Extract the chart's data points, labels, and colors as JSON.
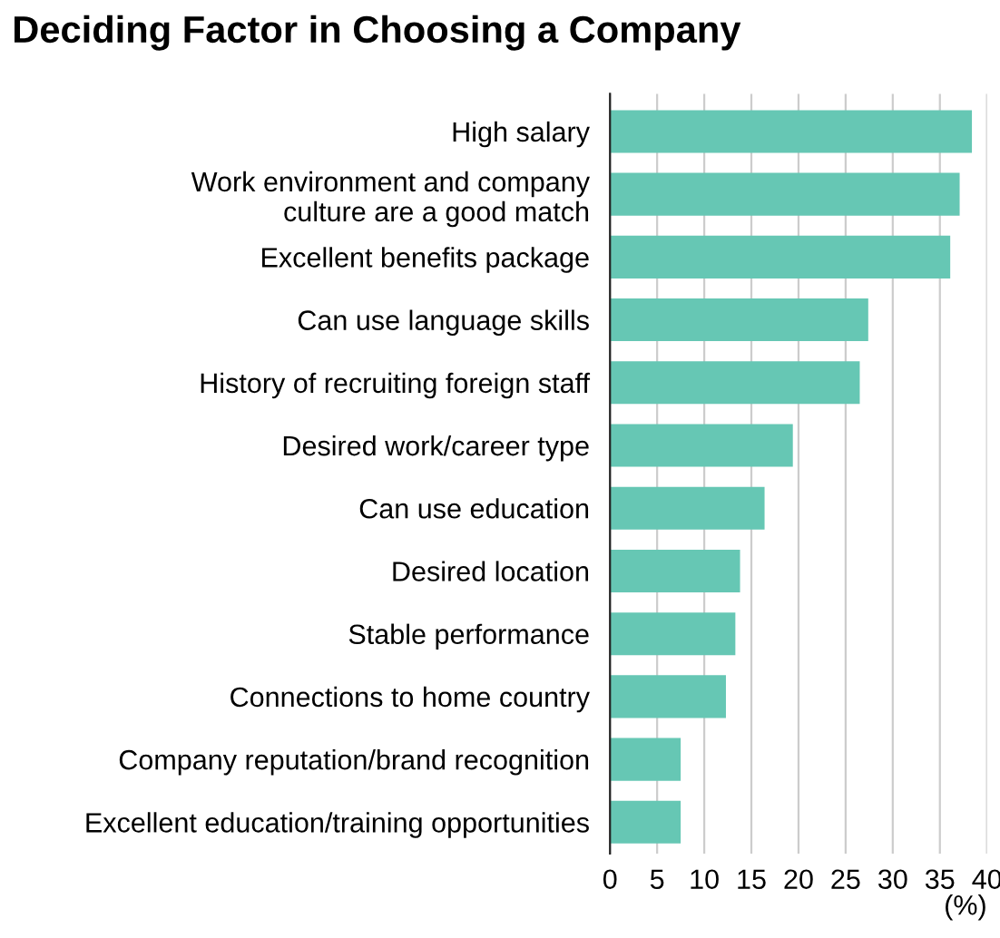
{
  "chart_data": {
    "type": "bar",
    "orientation": "horizontal",
    "title": "Deciding Factor in Choosing a Company",
    "xlabel": "(%)",
    "categories": [
      "High salary",
      "Work environment and company\nculture are a good match",
      "Excellent benefits package",
      "Can use language skills",
      "History of recruiting foreign staff",
      "Desired work/career type",
      "Can use education",
      "Desired location",
      "Stable performance",
      "Connections to home country",
      "Company reputation/brand recognition",
      "Excellent education/training opportunities"
    ],
    "values": [
      38.4,
      37.1,
      36.1,
      27.4,
      26.5,
      19.4,
      16.4,
      13.8,
      13.3,
      12.3,
      7.5,
      7.5
    ],
    "color": "#66c7b4",
    "xlim": [
      0,
      40
    ],
    "xticks": [
      0,
      5,
      10,
      15,
      20,
      25,
      30,
      35,
      40
    ],
    "grid": "x",
    "legend": false
  }
}
